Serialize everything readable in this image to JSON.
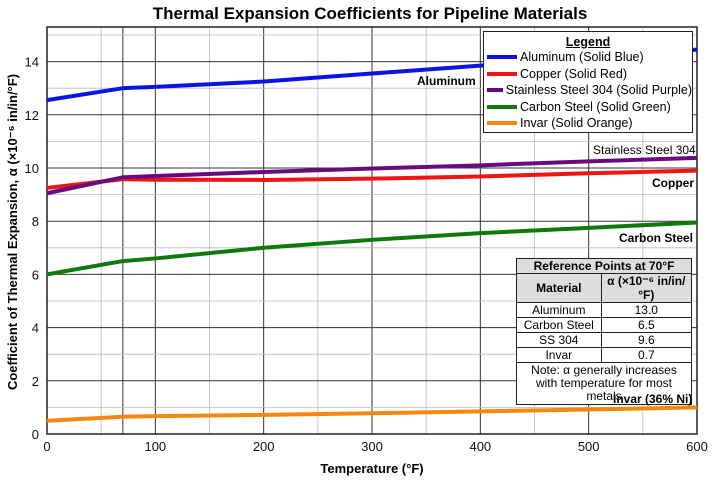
{
  "chart_data": {
    "type": "line",
    "title": "Thermal Expansion Coefficients for Pipeline Materials",
    "xlabel": "Temperature (°F)",
    "ylabel": "Coefficient of Thermal Expansion, α (×10⁻⁶ in/in/°F)",
    "xlim": [
      0,
      600
    ],
    "ylim": [
      0,
      15.3
    ],
    "xticks": [
      0,
      100,
      200,
      300,
      400,
      500,
      600
    ],
    "yticks": [
      0,
      2,
      4,
      6,
      8,
      10,
      12,
      14
    ],
    "grid": true,
    "legend_position": "top-right",
    "legend_title": "Legend",
    "x": [
      0,
      70,
      100,
      200,
      300,
      400,
      500,
      600
    ],
    "series": [
      {
        "name": "Aluminum (Solid Blue)",
        "label": "Aluminum",
        "color": "#0a14e6",
        "values": [
          12.55,
          13.0,
          13.05,
          13.25,
          13.55,
          13.85,
          14.15,
          14.45
        ]
      },
      {
        "name": "Copper (Solid Red)",
        "label": "Copper",
        "color": "#f01414",
        "values": [
          9.25,
          9.58,
          9.56,
          9.55,
          9.6,
          9.68,
          9.8,
          9.9
        ]
      },
      {
        "name": "Stainless Steel 304 (Solid Purple)",
        "label": "Stainless Steel 304",
        "color": "#6a0a80",
        "values": [
          9.05,
          9.65,
          9.7,
          9.85,
          9.98,
          10.1,
          10.25,
          10.38
        ]
      },
      {
        "name": "Carbon Steel (Solid Green)",
        "label": "Carbon Steel",
        "color": "#0e7a0e",
        "values": [
          6.0,
          6.5,
          6.6,
          7.0,
          7.3,
          7.55,
          7.75,
          7.95
        ]
      },
      {
        "name": "Invar (Solid Orange)",
        "label": "Invar (36% Ni)",
        "color": "#f5870f",
        "values": [
          0.5,
          0.65,
          0.67,
          0.72,
          0.78,
          0.85,
          0.92,
          1.0
        ]
      }
    ],
    "reference_table": {
      "title": "Reference Points at 70°F",
      "headers": [
        "Material",
        "α (×10⁻⁶ in/in/°F)"
      ],
      "rows": [
        [
          "Aluminum",
          "13.0"
        ],
        [
          "Carbon Steel",
          "6.5"
        ],
        [
          "SS 304",
          "9.6"
        ],
        [
          "Invar",
          "0.7"
        ]
      ],
      "note": "Note: α generally increases with temperature for most metals"
    }
  }
}
